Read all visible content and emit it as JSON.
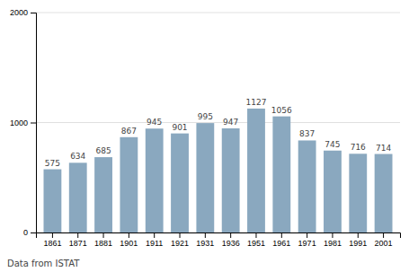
{
  "chart_data": {
    "type": "bar",
    "categories": [
      "1861",
      "1871",
      "1881",
      "1901",
      "1911",
      "1921",
      "1931",
      "1936",
      "1951",
      "1961",
      "1971",
      "1981",
      "1991",
      "2001"
    ],
    "values": [
      575,
      634,
      685,
      867,
      945,
      901,
      995,
      947,
      1127,
      1056,
      837,
      745,
      716,
      714
    ],
    "color": "#8aa8bf",
    "ylim": [
      0,
      2000
    ],
    "yticks": [
      0,
      1000,
      2000
    ],
    "grid": true,
    "data_labels": true,
    "annotations": [
      "Data from ISTAT"
    ]
  }
}
